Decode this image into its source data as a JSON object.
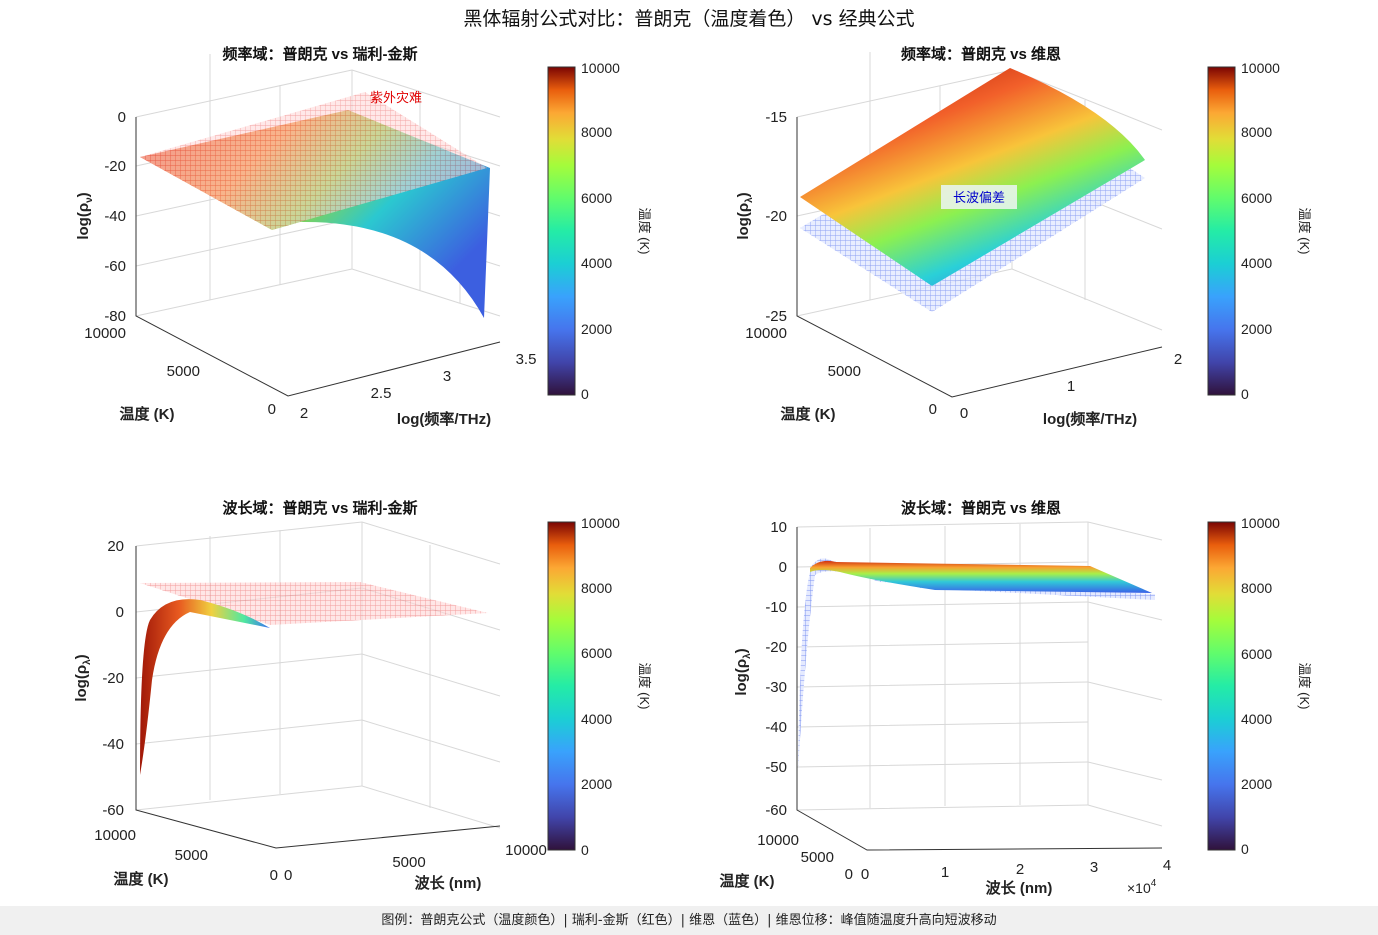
{
  "figure": {
    "title": "黑体辐射公式对比：普朗克（温度着色） vs 经典公式",
    "footer": "图例：普朗克公式（温度颜色）| 瑞利-金斯（红色）| 维恩（蓝色）| 维恩位移：峰值随温度升高向短波移动"
  },
  "chart_data": [
    {
      "type": "surface3d",
      "title": "频率域：普朗克 vs 瑞利-金斯",
      "xlabel": "log(频率/THz)",
      "ylabel": "温度 (K)",
      "zlabel": "log(ρ_ν)",
      "zlabel_main": "log(ρ",
      "zlabel_sub": "ν",
      "xticks": [
        "2",
        "2.5",
        "3",
        "3.5"
      ],
      "yticks": [
        "0",
        "5000",
        "10000"
      ],
      "zticks": [
        "0",
        "-20",
        "-40",
        "-60",
        "-80"
      ],
      "xlim": [
        2,
        3.5
      ],
      "ylim": [
        0,
        10000
      ],
      "zlim": [
        -80,
        0
      ],
      "annotation": "紫外灾难",
      "annotation_color": "#e00000",
      "colorbar": {
        "label": "温度 (K)",
        "ticks": [
          "0",
          "2000",
          "4000",
          "6000",
          "8000",
          "10000"
        ],
        "range": [
          0,
          10000
        ]
      },
      "series": [
        {
          "name": "普朗克",
          "coloring": "temperature",
          "samples_T_at_4000K": [
            -14,
            -22,
            -40,
            -78
          ]
        },
        {
          "name": "瑞利-金斯",
          "color": "#e03030"
        }
      ]
    },
    {
      "type": "surface3d",
      "title": "频率域：普朗克 vs 维恩",
      "xlabel": "log(频率/THz)",
      "ylabel": "温度 (K)",
      "zlabel": "log(ρ_λ)",
      "zlabel_main": "log(ρ",
      "zlabel_sub": "λ",
      "xticks": [
        "0",
        "1",
        "2"
      ],
      "yticks": [
        "0",
        "5000",
        "10000"
      ],
      "zticks": [
        "-15",
        "-20",
        "-25"
      ],
      "xlim": [
        0,
        2
      ],
      "ylim": [
        0,
        10000
      ],
      "zlim": [
        -25,
        -15
      ],
      "annotation": "长波偏差",
      "annotation_color": "#0000cc",
      "colorbar": {
        "label": "温度 (K)",
        "ticks": [
          "0",
          "2000",
          "4000",
          "6000",
          "8000",
          "10000"
        ],
        "range": [
          0,
          10000
        ]
      },
      "series": [
        {
          "name": "普朗克",
          "coloring": "temperature"
        },
        {
          "name": "维恩",
          "color": "#3050e0"
        }
      ]
    },
    {
      "type": "surface3d",
      "title": "波长域：普朗克 vs 瑞利-金斯",
      "xlabel": "波长 (nm)",
      "ylabel": "温度 (K)",
      "zlabel": "log(ρ_λ)",
      "zlabel_main": "log(ρ",
      "zlabel_sub": "λ",
      "xticks": [
        "0",
        "5000",
        "10000"
      ],
      "yticks": [
        "0",
        "5000",
        "10000"
      ],
      "zticks": [
        "20",
        "0",
        "-20",
        "-40",
        "-60"
      ],
      "xlim": [
        0,
        10000
      ],
      "ylim": [
        0,
        10000
      ],
      "zlim": [
        -60,
        20
      ],
      "colorbar": {
        "label": "温度 (K)",
        "ticks": [
          "0",
          "2000",
          "4000",
          "6000",
          "8000",
          "10000"
        ],
        "range": [
          0,
          10000
        ]
      },
      "series": [
        {
          "name": "普朗克",
          "coloring": "temperature"
        },
        {
          "name": "瑞利-金斯",
          "color": "#e03030"
        }
      ]
    },
    {
      "type": "surface3d",
      "title": "波长域：普朗克 vs 维恩",
      "xlabel": "波长 (nm)",
      "ylabel": "温度 (K)",
      "zlabel": "log(ρ_λ)",
      "zlabel_main": "log(ρ",
      "zlabel_sub": "λ",
      "xticks": [
        "0",
        "1",
        "2",
        "3",
        "4"
      ],
      "x_exponent": "×10",
      "x_exponent_power": "4",
      "yticks": [
        "0",
        "5000",
        "10000"
      ],
      "zticks": [
        "10",
        "0",
        "-10",
        "-20",
        "-30",
        "-40",
        "-50",
        "-60"
      ],
      "xlim": [
        0,
        40000
      ],
      "ylim": [
        0,
        10000
      ],
      "zlim": [
        -60,
        10
      ],
      "colorbar": {
        "label": "温度 (K)",
        "ticks": [
          "0",
          "2000",
          "4000",
          "6000",
          "8000",
          "10000"
        ],
        "range": [
          0,
          10000
        ]
      },
      "series": [
        {
          "name": "普朗克",
          "coloring": "temperature"
        },
        {
          "name": "维恩",
          "color": "#3050e0"
        }
      ]
    }
  ]
}
